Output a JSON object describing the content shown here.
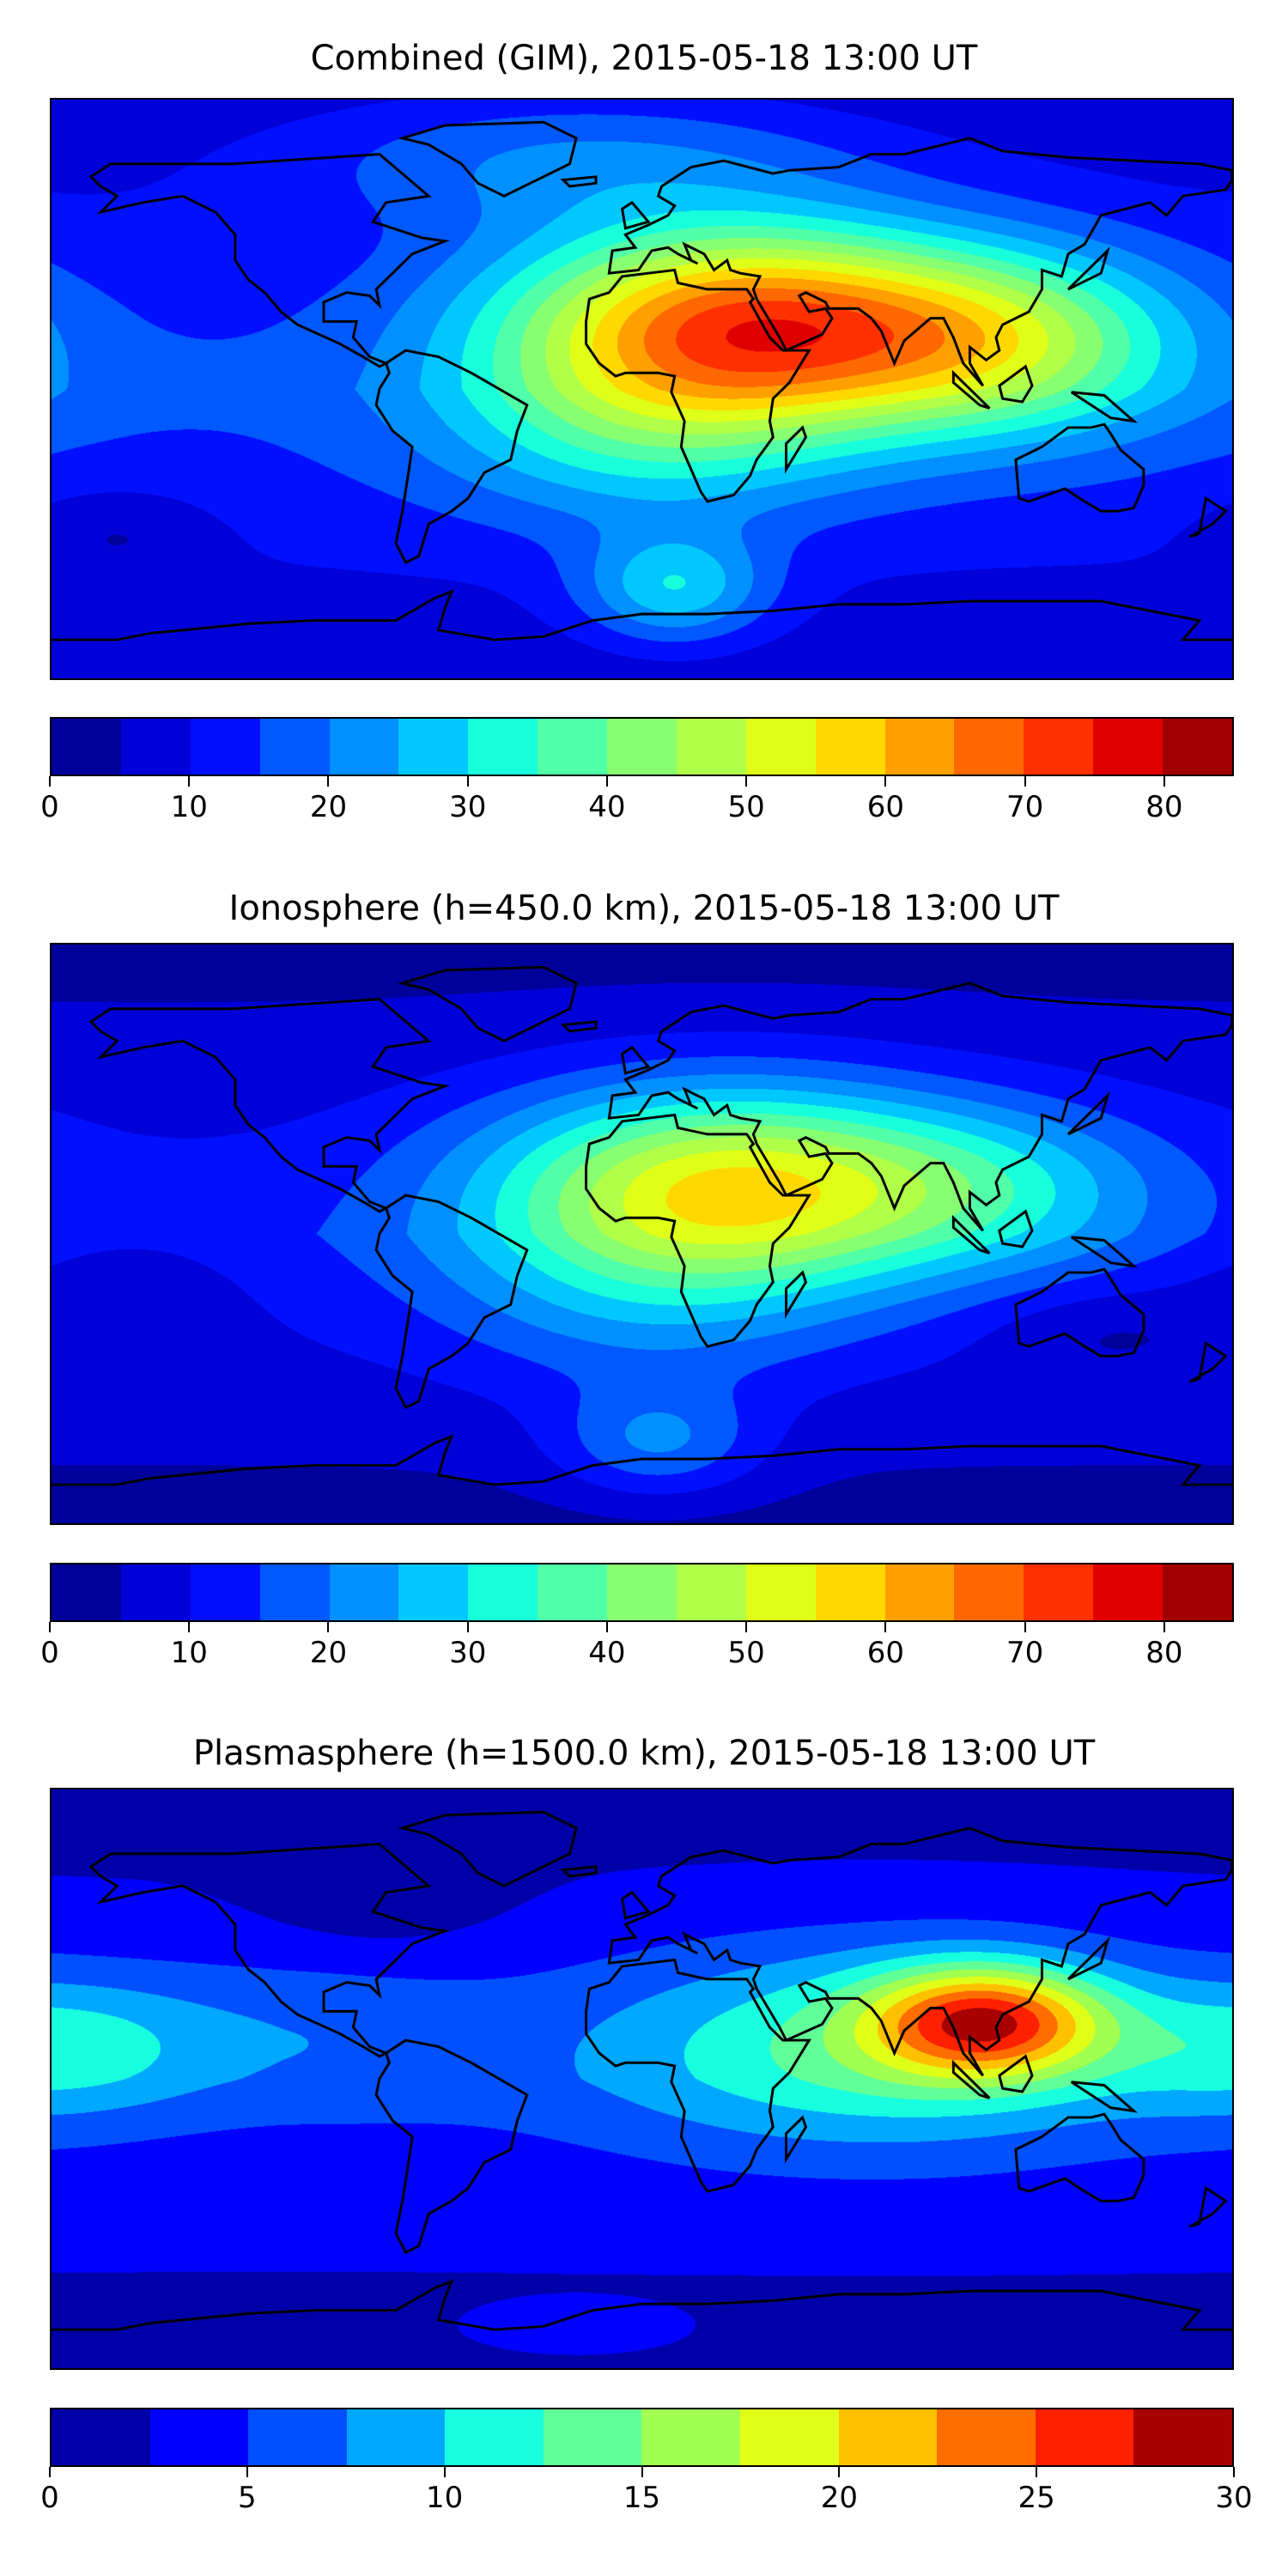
{
  "chart_data": [
    {
      "type": "heatmap",
      "title": "Combined (GIM), 2015-05-18 13:00 UT",
      "xlim": [
        -180,
        180
      ],
      "ylim": [
        -90,
        90
      ],
      "colorbar": {
        "levels_min": 0,
        "levels_max": 85,
        "step": 5,
        "ticks": [
          0,
          10,
          20,
          30,
          40,
          50,
          60,
          70,
          80
        ],
        "colors": [
          "#00009a",
          "#0000d8",
          "#0010ff",
          "#0058ff",
          "#0090ff",
          "#00c8ff",
          "#18ffdc",
          "#50ffa8",
          "#88ff70",
          "#b0ff48",
          "#e0ff18",
          "#ffd800",
          "#ffa000",
          "#ff6800",
          "#ff3000",
          "#e00000",
          "#a00000"
        ]
      },
      "field": {
        "base": 16,
        "base_lat_drop": 10,
        "sources": [
          {
            "lon": 30,
            "lat": 20,
            "amp": 55,
            "slon": 50,
            "slat": 22
          },
          {
            "lon": 110,
            "lat": 15,
            "amp": 28,
            "slon": 40,
            "slat": 20
          },
          {
            "lon": 0,
            "lat": -15,
            "amp": 15,
            "slon": 45,
            "slat": 20
          },
          {
            "lon": 10,
            "lat": -62,
            "amp": 20,
            "slon": 20,
            "slat": 12
          },
          {
            "lon": -20,
            "lat": 72,
            "amp": 12,
            "slon": 60,
            "slat": 15
          },
          {
            "lon": -160,
            "lat": -45,
            "amp": -6,
            "slon": 20,
            "slat": 10
          }
        ]
      }
    },
    {
      "type": "heatmap",
      "title": "Ionosphere  (h=450.0 km), 2015-05-18 13:00 UT",
      "xlim": [
        -180,
        180
      ],
      "ylim": [
        -90,
        90
      ],
      "colorbar": {
        "levels_min": 0,
        "levels_max": 85,
        "step": 5,
        "ticks": [
          0,
          10,
          20,
          30,
          40,
          50,
          60,
          70,
          80
        ],
        "colors": [
          "#00009a",
          "#0000d8",
          "#0010ff",
          "#0058ff",
          "#0090ff",
          "#00c8ff",
          "#18ffdc",
          "#50ffa8",
          "#88ff70",
          "#b0ff48",
          "#e0ff18",
          "#ffd800",
          "#ffa000",
          "#ff6800",
          "#ff3000",
          "#e00000",
          "#a00000"
        ]
      },
      "field": {
        "base": 13,
        "base_lat_drop": 10,
        "sources": [
          {
            "lon": 25,
            "lat": 15,
            "amp": 42,
            "slon": 50,
            "slat": 22
          },
          {
            "lon": 105,
            "lat": 15,
            "amp": 15,
            "slon": 40,
            "slat": 18
          },
          {
            "lon": 0,
            "lat": -20,
            "amp": 10,
            "slon": 45,
            "slat": 22
          },
          {
            "lon": 5,
            "lat": -65,
            "amp": 14,
            "slon": 22,
            "slat": 12
          },
          {
            "lon": -160,
            "lat": -20,
            "amp": -5,
            "slon": 25,
            "slat": 15
          },
          {
            "lon": 140,
            "lat": -30,
            "amp": -5,
            "slon": 25,
            "slat": 10
          }
        ]
      }
    },
    {
      "type": "heatmap",
      "title": "Plasmasphere (h=1500.0 km), 2015-05-18 13:00 UT",
      "xlim": [
        -180,
        180
      ],
      "ylim": [
        -90,
        90
      ],
      "colorbar": {
        "levels_min": 0,
        "levels_max": 30,
        "step": 2.5,
        "ticks": [
          0,
          5,
          10,
          15,
          20,
          25,
          30
        ],
        "colors": [
          "#0000a8",
          "#0000ff",
          "#0050ff",
          "#00a8ff",
          "#18ffe0",
          "#60ff98",
          "#a0ff50",
          "#e0ff18",
          "#ffc000",
          "#ff6c00",
          "#ff2000",
          "#a80000"
        ]
      },
      "field": {
        "base": 4.5,
        "base_lat_drop": 3,
        "sources": [
          {
            "lon": 105,
            "lat": 18,
            "amp": 18,
            "slon": 25,
            "slat": 12
          },
          {
            "lon": 70,
            "lat": 10,
            "amp": 9,
            "slon": 60,
            "slat": 22
          },
          {
            "lon": -175,
            "lat": 10,
            "amp": 6,
            "slon": 30,
            "slat": 15
          },
          {
            "lon": -100,
            "lat": 15,
            "amp": 3,
            "slon": 40,
            "slat": 18
          },
          {
            "lon": -20,
            "lat": -78,
            "amp": 3,
            "slon": 20,
            "slat": 5
          },
          {
            "lon": -80,
            "lat": 60,
            "amp": -2.5,
            "slon": 25,
            "slat": 15
          }
        ]
      }
    }
  ]
}
